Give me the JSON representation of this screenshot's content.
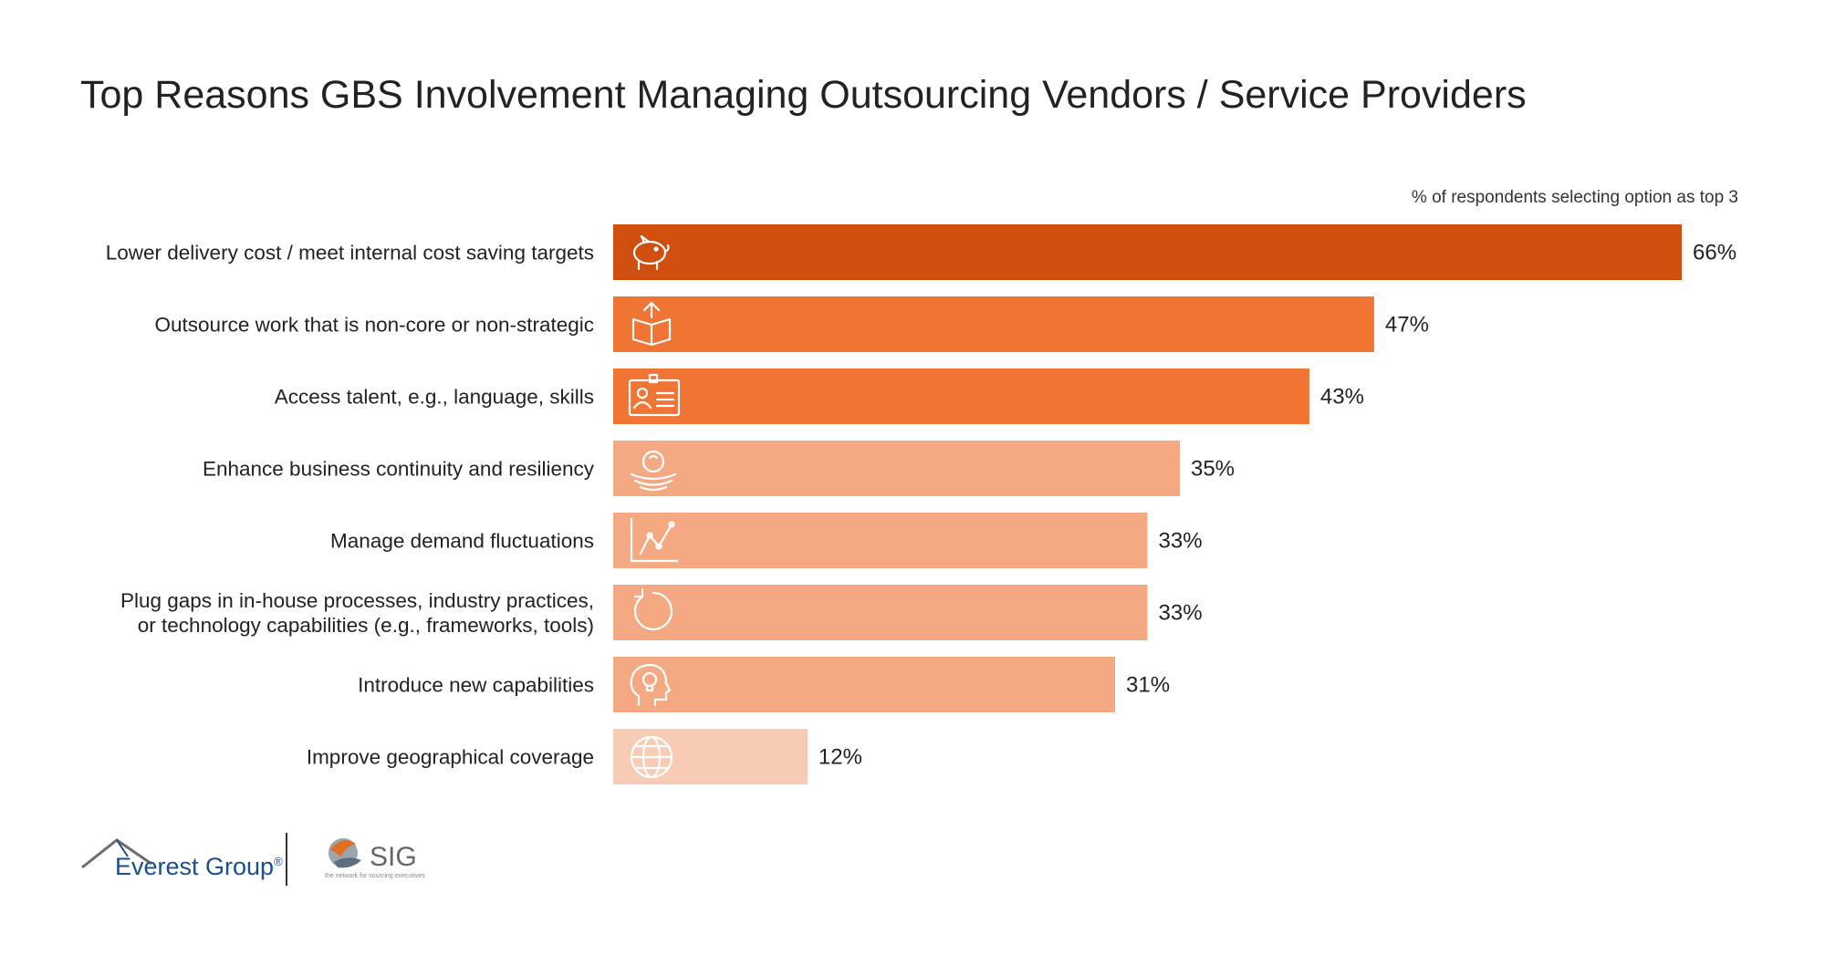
{
  "chart_data": {
    "type": "bar",
    "orientation": "horizontal",
    "title": "Top Reasons GBS Involvement Managing Outsourcing Vendors / Service Providers",
    "note": "% of respondents selecting option as top 3",
    "xlim": [
      0,
      66
    ],
    "categories": [
      [
        "Lower delivery cost / meet internal cost saving targets"
      ],
      [
        "Outsource work that is non-core or non-strategic"
      ],
      [
        "Access talent, e.g., language, skills"
      ],
      [
        "Enhance business continuity and resiliency"
      ],
      [
        "Manage demand fluctuations"
      ],
      [
        "Plug gaps in in-house processes, industry practices,",
        "or technology capabilities (e.g., frameworks, tools)"
      ],
      [
        "Introduce new capabilities"
      ],
      [
        "Improve geographical coverage"
      ]
    ],
    "values": [
      66,
      47,
      43,
      35,
      33,
      33,
      31,
      12
    ],
    "value_labels": [
      "66%",
      "47%",
      "43%",
      "35%",
      "33%",
      "33%",
      "31%",
      "12%"
    ],
    "bar_colors": [
      "#d04e0e",
      "#f07535",
      "#f07535",
      "#f5a983",
      "#f5a983",
      "#f5a983",
      "#f5a983",
      "#f8cbb4"
    ],
    "icons": [
      "piggy-bank-icon",
      "outsource-box-icon",
      "id-card-icon",
      "resilience-icon",
      "line-chart-icon",
      "refresh-cycle-icon",
      "head-lightbulb-icon",
      "globe-icon"
    ],
    "grid": false
  },
  "footer": {
    "everest_logo": "Everest Group",
    "everest_mark": "®",
    "sig_logo": "SIG",
    "sig_tagline": "the network for sourcing executives"
  }
}
